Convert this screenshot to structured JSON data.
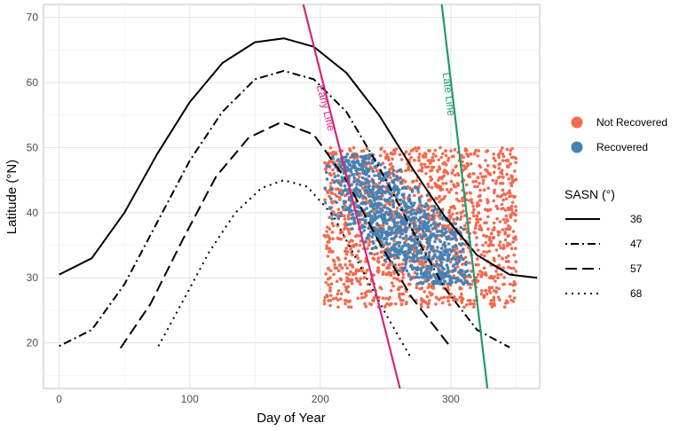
{
  "chart_data": {
    "type": "scatter",
    "xlabel": "Day of Year",
    "ylabel": "Latitude (°N)",
    "xlim": [
      -12,
      368
    ],
    "ylim": [
      13,
      72
    ],
    "x_ticks": [
      0,
      100,
      200,
      300
    ],
    "y_ticks": [
      20,
      30,
      40,
      50,
      60,
      70
    ],
    "grid": true,
    "colors": {
      "not_recovered": "#f26a4f",
      "recovered": "#4682b4",
      "early_line": "#d6247f",
      "late_line": "#1f9a6e"
    },
    "point_legend": {
      "position": "right",
      "entries": [
        {
          "label": "Not Recovered",
          "color": "#f26a4f"
        },
        {
          "label": "Recovered",
          "color": "#4682b4"
        }
      ]
    },
    "line_legend": {
      "title": "SASN (°)",
      "position": "right",
      "entries": [
        {
          "label": "36",
          "dash": "solid"
        },
        {
          "label": "47",
          "dash": "dotdash"
        },
        {
          "label": "57",
          "dash": "longdash"
        },
        {
          "label": "68",
          "dash": "dotted"
        }
      ]
    },
    "curves": [
      {
        "name": "36",
        "dash": "solid",
        "x": [
          0,
          25,
          50,
          75,
          100,
          125,
          150,
          172,
          195,
          220,
          245,
          270,
          295,
          320,
          345,
          366
        ],
        "y": [
          30.5,
          33.0,
          40.0,
          49.0,
          57.0,
          63.0,
          66.2,
          66.8,
          65.5,
          61.5,
          55.0,
          47.0,
          39.5,
          33.5,
          30.5,
          30.0
        ]
      },
      {
        "name": "47",
        "dash": "dotdash",
        "x": [
          0,
          25,
          50,
          75,
          100,
          125,
          150,
          172,
          195,
          220,
          245,
          270,
          295,
          320,
          345
        ],
        "y": [
          19.5,
          22.0,
          29.0,
          38.5,
          48.0,
          55.5,
          60.5,
          61.8,
          60.5,
          55.5,
          47.0,
          37.5,
          28.5,
          22.0,
          19.3
        ]
      },
      {
        "name": "57",
        "dash": "longdash",
        "x": [
          47,
          70,
          95,
          120,
          145,
          170,
          195,
          220,
          245,
          270,
          300
        ],
        "y": [
          19.2,
          26.0,
          36.0,
          45.5,
          51.5,
          53.9,
          52.0,
          45.0,
          35.5,
          27.0,
          19.3
        ]
      },
      {
        "name": "68",
        "dash": "dotted",
        "x": [
          76,
          95,
          115,
          135,
          155,
          172,
          190,
          210,
          230,
          250,
          270
        ],
        "y": [
          19.5,
          26.5,
          34.0,
          40.0,
          43.8,
          45.0,
          44.0,
          39.5,
          32.0,
          24.5,
          17.5
        ]
      }
    ],
    "reference_lines": [
      {
        "label": "Early Line",
        "x": [
          187,
          261
        ],
        "y": [
          72,
          13
        ]
      },
      {
        "label": "Late Line",
        "x": [
          293,
          328
        ],
        "y": [
          72,
          13
        ]
      }
    ],
    "point_clouds": [
      {
        "name": "Not Recovered",
        "x_range": [
          203,
          350
        ],
        "y_range": [
          25.5,
          50.0
        ]
      },
      {
        "name": "Recovered",
        "x_range": [
          215,
          305
        ],
        "y_range": [
          29.0,
          49.0
        ]
      }
    ]
  }
}
